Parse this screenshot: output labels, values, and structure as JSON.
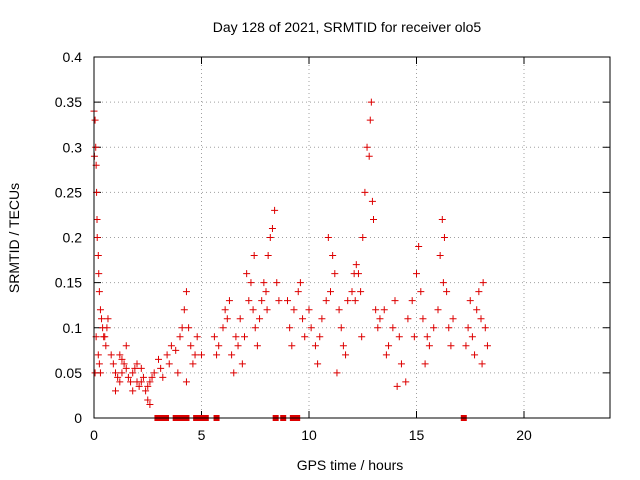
{
  "chart_data": {
    "type": "scatter",
    "title": "Day 128 of 2021, SRMTID for receiver olo5",
    "xlabel": "GPS time / hours",
    "ylabel": "SRMTID / TECUs",
    "xlim": [
      0,
      24
    ],
    "ylim": [
      0,
      0.4
    ],
    "xticks": [
      0,
      5,
      10,
      15,
      20
    ],
    "yticks": [
      0,
      0.05,
      0.1,
      0.15,
      0.2,
      0.25,
      0.3,
      0.35,
      0.4
    ],
    "x_tick_labels": [
      "0",
      "5",
      "10",
      "15",
      "20"
    ],
    "y_tick_labels": [
      "0",
      "0.05",
      "0.1",
      "0.15",
      "0.2",
      "0.25",
      "0.3",
      "0.35",
      "0.4"
    ],
    "grid": true,
    "marker": "+",
    "color": "#dd0000",
    "series": [
      {
        "name": "SRMTID",
        "points": [
          [
            0.0,
            0.34
          ],
          [
            0.05,
            0.33
          ],
          [
            0.08,
            0.3
          ],
          [
            0.1,
            0.28
          ],
          [
            0.12,
            0.25
          ],
          [
            0.14,
            0.22
          ],
          [
            0.15,
            0.2
          ],
          [
            0.2,
            0.18
          ],
          [
            0.22,
            0.16
          ],
          [
            0.25,
            0.14
          ],
          [
            0.3,
            0.12
          ],
          [
            0.35,
            0.11
          ],
          [
            0.4,
            0.1
          ],
          [
            0.45,
            0.09
          ],
          [
            0.5,
            0.09
          ],
          [
            0.55,
            0.08
          ],
          [
            0.6,
            0.1
          ],
          [
            0.65,
            0.11
          ],
          [
            0.2,
            0.07
          ],
          [
            0.25,
            0.06
          ],
          [
            0.3,
            0.05
          ],
          [
            0.1,
            0.09
          ],
          [
            0.05,
            0.05
          ],
          [
            0.02,
            0.29
          ],
          [
            0.8,
            0.07
          ],
          [
            0.9,
            0.06
          ],
          [
            1.0,
            0.05
          ],
          [
            1.1,
            0.045
          ],
          [
            1.2,
            0.04
          ],
          [
            1.3,
            0.05
          ],
          [
            1.4,
            0.06
          ],
          [
            1.5,
            0.055
          ],
          [
            1.6,
            0.045
          ],
          [
            1.7,
            0.04
          ],
          [
            1.8,
            0.05
          ],
          [
            1.9,
            0.055
          ],
          [
            2.0,
            0.04
          ],
          [
            2.1,
            0.035
          ],
          [
            2.2,
            0.04
          ],
          [
            2.3,
            0.045
          ],
          [
            2.4,
            0.03
          ],
          [
            2.5,
            0.035
          ],
          [
            2.6,
            0.04
          ],
          [
            2.7,
            0.045
          ],
          [
            1.0,
            0.03
          ],
          [
            1.2,
            0.07
          ],
          [
            1.5,
            0.08
          ],
          [
            2.0,
            0.06
          ],
          [
            2.5,
            0.02
          ],
          [
            2.6,
            0.015
          ],
          [
            2.8,
            0.05
          ],
          [
            1.8,
            0.03
          ],
          [
            1.3,
            0.065
          ],
          [
            2.2,
            0.055
          ],
          [
            3.0,
            0.065
          ],
          [
            3.1,
            0.055
          ],
          [
            3.2,
            0.045
          ],
          [
            3.4,
            0.07
          ],
          [
            3.5,
            0.06
          ],
          [
            3.6,
            0.08
          ],
          [
            3.8,
            0.075
          ],
          [
            4.0,
            0.09
          ],
          [
            4.1,
            0.1
          ],
          [
            4.2,
            0.12
          ],
          [
            4.3,
            0.14
          ],
          [
            4.4,
            0.1
          ],
          [
            4.5,
            0.08
          ],
          [
            4.6,
            0.06
          ],
          [
            4.7,
            0.07
          ],
          [
            4.8,
            0.09
          ],
          [
            5.0,
            0.07
          ],
          [
            3.9,
            0.05
          ],
          [
            4.3,
            0.04
          ],
          [
            5.6,
            0.09
          ],
          [
            5.7,
            0.07
          ],
          [
            5.8,
            0.08
          ],
          [
            6.0,
            0.1
          ],
          [
            6.1,
            0.12
          ],
          [
            6.2,
            0.11
          ],
          [
            6.4,
            0.07
          ],
          [
            6.5,
            0.05
          ],
          [
            6.6,
            0.09
          ],
          [
            6.8,
            0.11
          ],
          [
            7.0,
            0.09
          ],
          [
            7.2,
            0.13
          ],
          [
            7.3,
            0.15
          ],
          [
            7.4,
            0.12
          ],
          [
            7.5,
            0.1
          ],
          [
            7.6,
            0.08
          ],
          [
            7.8,
            0.13
          ],
          [
            7.9,
            0.15
          ],
          [
            8.0,
            0.14
          ],
          [
            8.1,
            0.18
          ],
          [
            8.2,
            0.2
          ],
          [
            8.3,
            0.21
          ],
          [
            8.4,
            0.23
          ],
          [
            8.5,
            0.15
          ],
          [
            8.6,
            0.13
          ],
          [
            6.3,
            0.13
          ],
          [
            6.9,
            0.06
          ],
          [
            7.1,
            0.16
          ],
          [
            7.7,
            0.11
          ],
          [
            8.05,
            0.12
          ],
          [
            6.7,
            0.08
          ],
          [
            7.45,
            0.18
          ],
          [
            9.0,
            0.13
          ],
          [
            9.1,
            0.1
          ],
          [
            9.2,
            0.08
          ],
          [
            9.3,
            0.12
          ],
          [
            9.5,
            0.14
          ],
          [
            9.7,
            0.11
          ],
          [
            9.8,
            0.09
          ],
          [
            10.0,
            0.12
          ],
          [
            10.1,
            0.1
          ],
          [
            10.3,
            0.08
          ],
          [
            10.5,
            0.09
          ],
          [
            10.6,
            0.11
          ],
          [
            10.8,
            0.13
          ],
          [
            11.0,
            0.14
          ],
          [
            11.1,
            0.18
          ],
          [
            11.2,
            0.16
          ],
          [
            11.4,
            0.12
          ],
          [
            11.5,
            0.1
          ],
          [
            11.6,
            0.08
          ],
          [
            11.8,
            0.13
          ],
          [
            12.0,
            0.14
          ],
          [
            12.1,
            0.16
          ],
          [
            12.2,
            0.17
          ],
          [
            12.3,
            0.16
          ],
          [
            12.4,
            0.14
          ],
          [
            12.5,
            0.2
          ],
          [
            12.6,
            0.25
          ],
          [
            12.7,
            0.3
          ],
          [
            12.8,
            0.29
          ],
          [
            12.85,
            0.33
          ],
          [
            12.9,
            0.35
          ],
          [
            12.95,
            0.24
          ],
          [
            13.0,
            0.22
          ],
          [
            13.1,
            0.12
          ],
          [
            13.2,
            0.1
          ],
          [
            10.4,
            0.06
          ],
          [
            11.3,
            0.05
          ],
          [
            11.7,
            0.07
          ],
          [
            9.6,
            0.15
          ],
          [
            10.9,
            0.2
          ],
          [
            12.15,
            0.13
          ],
          [
            12.45,
            0.09
          ],
          [
            13.3,
            0.11
          ],
          [
            13.5,
            0.12
          ],
          [
            13.7,
            0.08
          ],
          [
            13.9,
            0.1
          ],
          [
            14.0,
            0.13
          ],
          [
            14.2,
            0.09
          ],
          [
            14.3,
            0.06
          ],
          [
            14.5,
            0.04
          ],
          [
            14.6,
            0.11
          ],
          [
            14.8,
            0.13
          ],
          [
            15.0,
            0.16
          ],
          [
            15.1,
            0.19
          ],
          [
            15.2,
            0.14
          ],
          [
            15.3,
            0.11
          ],
          [
            15.5,
            0.09
          ],
          [
            15.6,
            0.08
          ],
          [
            15.8,
            0.1
          ],
          [
            16.0,
            0.12
          ],
          [
            16.1,
            0.18
          ],
          [
            16.2,
            0.22
          ],
          [
            16.3,
            0.2
          ],
          [
            16.4,
            0.14
          ],
          [
            16.5,
            0.1
          ],
          [
            16.6,
            0.08
          ],
          [
            16.7,
            0.11
          ],
          [
            14.1,
            0.035
          ],
          [
            13.6,
            0.07
          ],
          [
            14.9,
            0.09
          ],
          [
            15.4,
            0.06
          ],
          [
            16.25,
            0.15
          ],
          [
            17.3,
            0.08
          ],
          [
            17.4,
            0.1
          ],
          [
            17.5,
            0.13
          ],
          [
            17.6,
            0.09
          ],
          [
            17.7,
            0.07
          ],
          [
            17.8,
            0.12
          ],
          [
            17.9,
            0.14
          ],
          [
            18.0,
            0.11
          ],
          [
            18.1,
            0.15
          ],
          [
            18.2,
            0.1
          ],
          [
            18.3,
            0.08
          ],
          [
            18.05,
            0.06
          ],
          [
            2.95,
            0.0
          ],
          [
            3.1,
            0.0
          ],
          [
            3.35,
            0.0
          ],
          [
            3.8,
            0.0
          ],
          [
            3.95,
            0.0
          ],
          [
            4.1,
            0.0
          ],
          [
            4.3,
            0.0
          ],
          [
            4.75,
            0.0
          ],
          [
            4.95,
            0.0
          ],
          [
            5.2,
            0.0
          ],
          [
            5.7,
            0.0
          ],
          [
            8.45,
            0.0
          ],
          [
            8.8,
            0.0
          ],
          [
            9.25,
            0.0
          ],
          [
            9.45,
            0.0
          ],
          [
            17.2,
            0.0
          ]
        ]
      }
    ]
  }
}
